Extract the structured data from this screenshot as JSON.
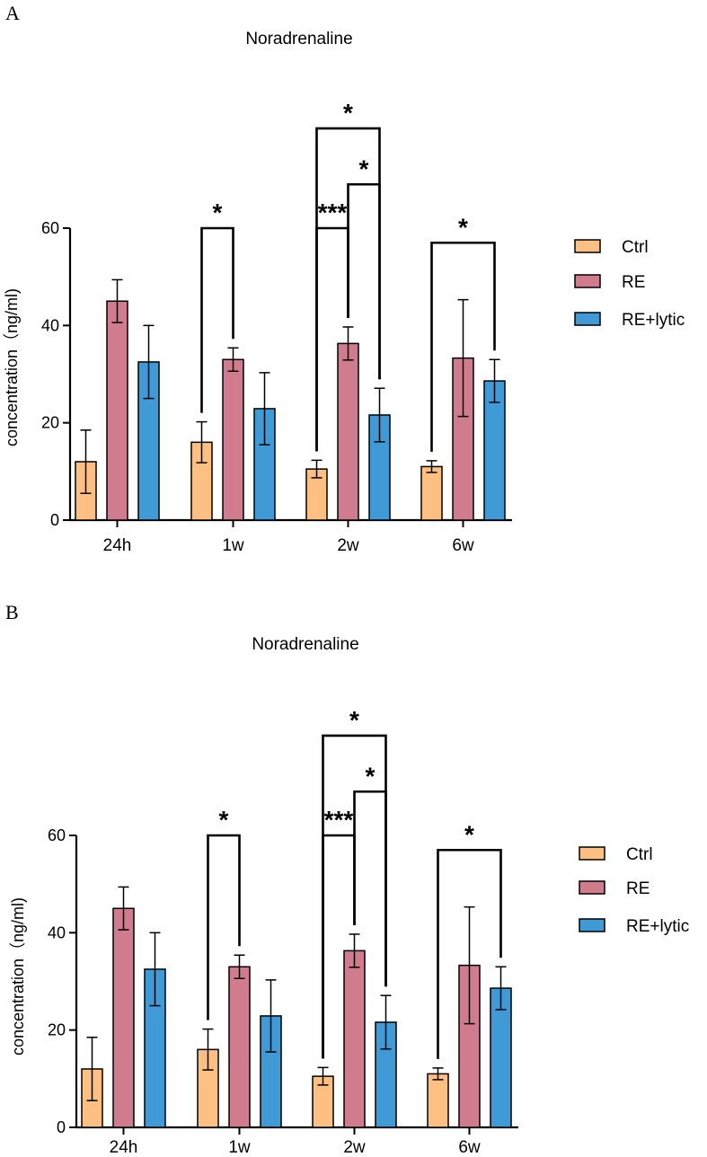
{
  "chart_data": [
    {
      "type": "bar",
      "panel_label": "A",
      "title": "Noradrenaline",
      "ylabel": "concentration（ng/ml)",
      "xlabel": "",
      "ylim": [
        0,
        60
      ],
      "yticks": [
        "0",
        "20",
        "40",
        "60"
      ],
      "categories": [
        "24h",
        "1w",
        "2w",
        "6w"
      ],
      "series": [
        {
          "name": "Ctrl",
          "color": "#FDBF82",
          "values": [
            12,
            16,
            10.5,
            11
          ],
          "errors": [
            6.5,
            4.2,
            1.8,
            1.2
          ]
        },
        {
          "name": "RE",
          "color": "#D07C8E",
          "values": [
            45,
            33,
            36.3,
            33.3
          ],
          "errors": [
            4.4,
            2.4,
            3.4,
            12
          ]
        },
        {
          "name": "RE+lytic",
          "color": "#3F9AD6",
          "values": [
            32.5,
            22.9,
            21.6,
            28.6
          ],
          "errors": [
            7.5,
            7.4,
            5.5,
            4.4
          ]
        }
      ],
      "significance": [
        {
          "group": 1,
          "from": 0,
          "to": 1,
          "label": "*",
          "level": 60
        },
        {
          "group": 2,
          "from": 0,
          "to": 1,
          "label": "***",
          "level": 60
        },
        {
          "group": 2,
          "from": 1,
          "to": 2,
          "label": "*",
          "level": 69
        },
        {
          "group": 2,
          "from": 0,
          "to": 2,
          "label": "*",
          "level": 80.5
        },
        {
          "group": 3,
          "from": 0,
          "to": 2,
          "label": "*",
          "level": 57
        }
      ]
    },
    {
      "type": "bar",
      "panel_label": "B",
      "title": "Noradrenaline",
      "ylabel": "concentration（ng/ml)",
      "xlabel": "",
      "ylim": [
        0,
        60
      ],
      "yticks": [
        "0",
        "20",
        "40",
        "60"
      ],
      "categories": [
        "24h",
        "1w",
        "2w",
        "6w"
      ],
      "series": [
        {
          "name": "Ctrl",
          "color": "#FDBF82",
          "values": [
            12,
            16,
            10.5,
            11
          ],
          "errors": [
            6.5,
            4.2,
            1.8,
            1.2
          ]
        },
        {
          "name": "RE",
          "color": "#D07C8E",
          "values": [
            45,
            33,
            36.3,
            33.3
          ],
          "errors": [
            4.4,
            2.4,
            3.4,
            12
          ]
        },
        {
          "name": "RE+lytic",
          "color": "#3F9AD6",
          "values": [
            32.5,
            22.9,
            21.6,
            28.6
          ],
          "errors": [
            7.5,
            7.4,
            5.5,
            4.4
          ]
        }
      ],
      "significance": [
        {
          "group": 1,
          "from": 0,
          "to": 1,
          "label": "*",
          "level": 60
        },
        {
          "group": 2,
          "from": 0,
          "to": 1,
          "label": "***",
          "level": 60
        },
        {
          "group": 2,
          "from": 1,
          "to": 2,
          "label": "*",
          "level": 69
        },
        {
          "group": 2,
          "from": 0,
          "to": 2,
          "label": "*",
          "level": 80.5
        },
        {
          "group": 3,
          "from": 0,
          "to": 2,
          "label": "*",
          "level": 57
        }
      ]
    }
  ]
}
